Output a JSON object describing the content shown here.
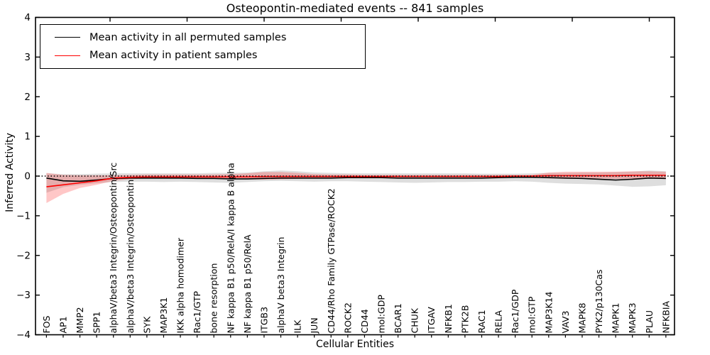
{
  "figure": {
    "title": "Osteopontin-mediated events -- 841 samples",
    "xlabel": "Cellular Entities",
    "ylabel": "Inferred Activity",
    "legend": {
      "permuted_label": "Mean activity in all permuted samples",
      "patient_label": "Mean activity in patient samples"
    },
    "colors": {
      "permuted_line": "#000000",
      "patient_line": "#ff0000",
      "permuted_band": "#a0a0a0",
      "patient_band": "#ff0000"
    }
  },
  "chart_data": {
    "type": "line",
    "title": "Osteopontin-mediated events -- 841 samples",
    "xlabel": "Cellular Entities",
    "ylabel": "Inferred Activity",
    "ylim": [
      -4,
      4
    ],
    "yticks": [
      4,
      3,
      2,
      1,
      0,
      -1,
      -2,
      -3,
      -4
    ],
    "grid": false,
    "legend_position": "upper left",
    "zero_reference_line": "black dotted at y=0",
    "categories": [
      "FOS",
      "AP1",
      "MMP2",
      "SPP1",
      "alphaV/beta3 Integrin/Osteopontin/Src",
      "alphaV/beta3 Integrin/Osteopontin",
      "SYK",
      "MAP3K1",
      "IKK alpha homodimer",
      "Rac1/GTP",
      "bone resorption",
      "NF kappa B1 p50/RelA/I kappa B alpha",
      "NF kappa B1 p50/RelA",
      "ITGB3",
      "alphaV beta3 Integrin",
      "ILK",
      "JUN",
      "CD44/Rho Family GTPase/ROCK2",
      "ROCK2",
      "CD44",
      "mol:GDP",
      "BCAR1",
      "CHUK",
      "ITGAV",
      "NFKB1",
      "PTK2B",
      "RAC1",
      "RELA",
      "Rac1/GDP",
      "mol:GTP",
      "MAP3K14",
      "VAV3",
      "MAPK8",
      "PYK2/p130Cas",
      "MAPK1",
      "MAPK3",
      "PLAU",
      "NFKBIA"
    ],
    "series": [
      {
        "name": "Mean activity in all permuted samples",
        "color": "#000000",
        "band_color": "#a0a0a0",
        "band_opacity": 0.35,
        "values": [
          -0.05,
          -0.12,
          -0.13,
          -0.1,
          -0.06,
          -0.05,
          -0.05,
          -0.05,
          -0.05,
          -0.06,
          -0.06,
          -0.07,
          -0.07,
          -0.06,
          -0.05,
          -0.05,
          -0.05,
          -0.05,
          -0.04,
          -0.04,
          -0.04,
          -0.05,
          -0.05,
          -0.05,
          -0.05,
          -0.05,
          -0.05,
          -0.04,
          -0.03,
          -0.03,
          -0.04,
          -0.05,
          -0.06,
          -0.08,
          -0.1,
          -0.08,
          -0.05,
          -0.06
        ],
        "band_upper": [
          0.07,
          0.05,
          0.05,
          0.06,
          0.07,
          0.07,
          0.07,
          0.07,
          0.07,
          0.07,
          0.08,
          0.08,
          0.09,
          0.12,
          0.14,
          0.12,
          0.09,
          0.08,
          0.07,
          0.07,
          0.07,
          0.07,
          0.07,
          0.07,
          0.07,
          0.07,
          0.06,
          0.06,
          0.06,
          0.07,
          0.08,
          0.08,
          0.09,
          0.09,
          0.1,
          0.11,
          0.14,
          0.12
        ],
        "band_lower": [
          -0.42,
          -0.28,
          -0.22,
          -0.18,
          -0.15,
          -0.14,
          -0.14,
          -0.15,
          -0.14,
          -0.15,
          -0.16,
          -0.17,
          -0.15,
          -0.13,
          -0.12,
          -0.13,
          -0.14,
          -0.13,
          -0.13,
          -0.14,
          -0.15,
          -0.16,
          -0.17,
          -0.16,
          -0.15,
          -0.15,
          -0.14,
          -0.14,
          -0.13,
          -0.14,
          -0.17,
          -0.19,
          -0.2,
          -0.21,
          -0.24,
          -0.27,
          -0.26,
          -0.23
        ]
      },
      {
        "name": "Mean activity in patient samples",
        "color": "#ff0000",
        "band_color": "#ff0000",
        "band_opacity": 0.22,
        "values": [
          -0.27,
          -0.22,
          -0.17,
          -0.12,
          -0.05,
          -0.03,
          -0.02,
          -0.02,
          -0.02,
          -0.02,
          -0.02,
          -0.02,
          -0.02,
          -0.01,
          -0.01,
          -0.01,
          -0.01,
          -0.01,
          -0.01,
          -0.01,
          -0.01,
          -0.01,
          -0.01,
          -0.01,
          -0.01,
          -0.01,
          -0.01,
          -0.01,
          0.0,
          0.0,
          0.01,
          0.01,
          0.01,
          0.01,
          0.01,
          0.02,
          0.02,
          0.02
        ],
        "band_upper": [
          0.08,
          0.03,
          0.02,
          0.02,
          0.02,
          0.03,
          0.04,
          0.04,
          0.04,
          0.04,
          0.04,
          0.05,
          0.07,
          0.1,
          0.1,
          0.08,
          0.05,
          0.04,
          0.04,
          0.03,
          0.03,
          0.03,
          0.03,
          0.03,
          0.03,
          0.03,
          0.03,
          0.03,
          0.03,
          0.03,
          0.09,
          0.11,
          0.11,
          0.11,
          0.11,
          0.12,
          0.12,
          0.11
        ],
        "band_lower": [
          -0.68,
          -0.45,
          -0.3,
          -0.22,
          -0.12,
          -0.08,
          -0.06,
          -0.05,
          -0.05,
          -0.05,
          -0.05,
          -0.06,
          -0.08,
          -0.09,
          -0.08,
          -0.07,
          -0.05,
          -0.04,
          -0.04,
          -0.03,
          -0.03,
          -0.03,
          -0.03,
          -0.03,
          -0.03,
          -0.03,
          -0.03,
          -0.03,
          -0.02,
          -0.02,
          -0.06,
          -0.07,
          -0.07,
          -0.06,
          -0.07,
          -0.07,
          -0.06,
          -0.08
        ]
      }
    ]
  }
}
